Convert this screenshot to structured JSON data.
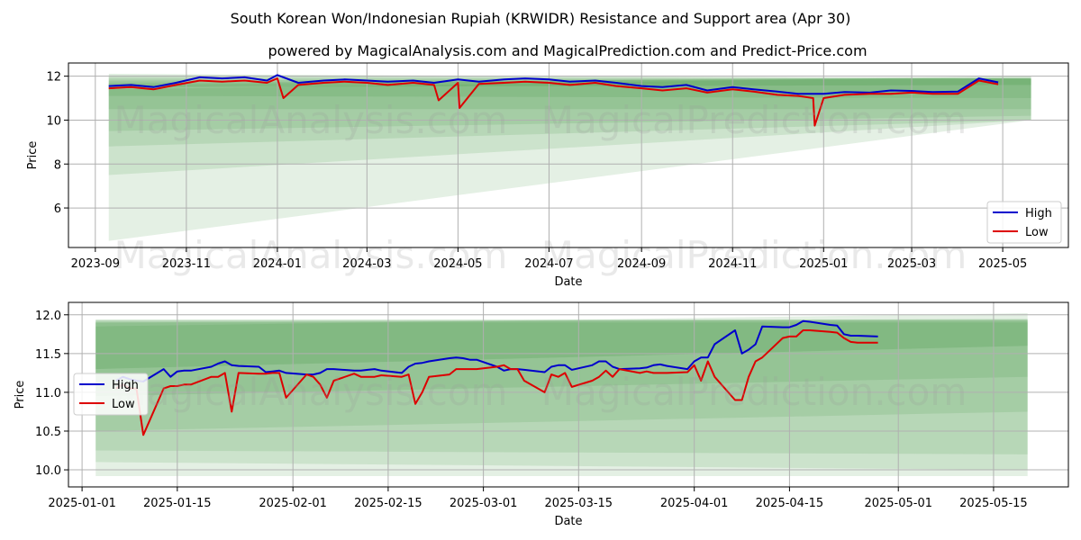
{
  "title": "South Korean Won/Indonesian Rupiah (KRWIDR) Resistance and Support area (Apr 30)",
  "subtitle": "powered by MagicalAnalysis.com and MagicalPrediction.com and Predict-Price.com",
  "watermarks": [
    "MagicalAnalysis.com",
    "MagicalPrediction.com"
  ],
  "colors": {
    "high": "#0000cc",
    "low": "#dd0000",
    "band": "#2e8b2e",
    "grid": "#b0b0b0"
  },
  "chart_data": [
    {
      "type": "line",
      "xlabel": "Date",
      "ylabel": "Price",
      "xlim": [
        "2023-08-14",
        "2025-06-14"
      ],
      "ylim": [
        4.2,
        12.6
      ],
      "x_ticks": [
        "2023-09",
        "2023-11",
        "2024-01",
        "2024-03",
        "2024-05",
        "2024-07",
        "2024-09",
        "2024-11",
        "2025-01",
        "2025-03",
        "2025-05"
      ],
      "y_ticks": [
        "6",
        "8",
        "10",
        "12"
      ],
      "legend": {
        "position": "bottom-right",
        "entries": [
          "High",
          "Low"
        ]
      },
      "bands": [
        {
          "start": "2023-09-10",
          "end": "2025-05-20",
          "start_range": [
            11.5,
            12.1
          ],
          "end_range": [
            11.6,
            11.9
          ]
        },
        {
          "start": "2023-09-10",
          "end": "2025-05-20",
          "start_range": [
            11.1,
            12.0
          ],
          "end_range": [
            11.0,
            11.9
          ]
        },
        {
          "start": "2023-09-10",
          "end": "2025-05-20",
          "start_range": [
            10.5,
            11.9
          ],
          "end_range": [
            10.5,
            11.9
          ]
        },
        {
          "start": "2023-09-10",
          "end": "2025-05-20",
          "start_range": [
            9.5,
            11.8
          ],
          "end_range": [
            10.2,
            11.9
          ]
        },
        {
          "start": "2023-09-10",
          "end": "2025-05-20",
          "start_range": [
            8.8,
            11.7
          ],
          "end_range": [
            10.0,
            11.9
          ]
        },
        {
          "start": "2023-09-10",
          "end": "2025-05-20",
          "start_range": [
            7.5,
            11.6
          ],
          "end_range": [
            10.0,
            12.0
          ]
        },
        {
          "start": "2023-09-10",
          "end": "2025-05-20",
          "start_range": [
            4.5,
            11.4
          ],
          "end_range": [
            10.0,
            12.0
          ]
        }
      ],
      "series": [
        {
          "name": "High",
          "x": [
            "2023-09-10",
            "2023-09-25",
            "2023-10-10",
            "2023-10-25",
            "2023-11-10",
            "2023-11-25",
            "2023-12-10",
            "2023-12-25",
            "2024-01-01",
            "2024-01-15",
            "2024-02-01",
            "2024-02-15",
            "2024-03-01",
            "2024-03-15",
            "2024-04-01",
            "2024-04-15",
            "2024-05-01",
            "2024-05-15",
            "2024-06-01",
            "2024-06-15",
            "2024-07-01",
            "2024-07-15",
            "2024-08-01",
            "2024-08-15",
            "2024-09-01",
            "2024-09-15",
            "2024-10-01",
            "2024-10-15",
            "2024-11-01",
            "2024-11-15",
            "2024-12-01",
            "2024-12-15",
            "2025-01-01",
            "2025-01-15",
            "2025-02-01",
            "2025-02-15",
            "2025-03-01",
            "2025-03-15",
            "2025-04-01",
            "2025-04-15",
            "2025-04-28"
          ],
          "values": [
            11.55,
            11.6,
            11.5,
            11.7,
            11.95,
            11.9,
            11.95,
            11.8,
            12.05,
            11.7,
            11.8,
            11.85,
            11.8,
            11.75,
            11.8,
            11.7,
            11.85,
            11.75,
            11.85,
            11.9,
            11.85,
            11.75,
            11.8,
            11.7,
            11.55,
            11.5,
            11.6,
            11.35,
            11.5,
            11.4,
            11.3,
            11.2,
            11.2,
            11.28,
            11.25,
            11.35,
            11.33,
            11.28,
            11.3,
            11.9,
            11.72
          ]
        },
        {
          "name": "Low",
          "x": [
            "2023-09-10",
            "2023-09-25",
            "2023-10-10",
            "2023-10-25",
            "2023-11-10",
            "2023-11-25",
            "2023-12-10",
            "2023-12-25",
            "2024-01-01",
            "2024-01-05",
            "2024-01-15",
            "2024-02-01",
            "2024-02-15",
            "2024-03-01",
            "2024-03-15",
            "2024-04-01",
            "2024-04-15",
            "2024-04-18",
            "2024-05-01",
            "2024-05-02",
            "2024-05-15",
            "2024-06-01",
            "2024-06-15",
            "2024-07-01",
            "2024-07-15",
            "2024-08-01",
            "2024-08-15",
            "2024-09-01",
            "2024-09-15",
            "2024-10-01",
            "2024-10-15",
            "2024-11-01",
            "2024-11-15",
            "2024-12-01",
            "2024-12-15",
            "2024-12-25",
            "2024-12-26",
            "2025-01-01",
            "2025-01-15",
            "2025-02-01",
            "2025-02-15",
            "2025-03-01",
            "2025-03-15",
            "2025-04-01",
            "2025-04-15",
            "2025-04-28"
          ],
          "values": [
            11.45,
            11.5,
            11.4,
            11.6,
            11.8,
            11.75,
            11.8,
            11.7,
            11.9,
            11.0,
            11.6,
            11.7,
            11.75,
            11.7,
            11.6,
            11.7,
            11.6,
            10.9,
            11.7,
            10.55,
            11.65,
            11.7,
            11.75,
            11.7,
            11.6,
            11.7,
            11.55,
            11.45,
            11.35,
            11.45,
            11.25,
            11.4,
            11.3,
            11.15,
            11.1,
            11.0,
            9.75,
            11.0,
            11.15,
            11.2,
            11.2,
            11.25,
            11.2,
            11.2,
            11.8,
            11.63
          ]
        }
      ]
    },
    {
      "type": "line",
      "xlabel": "Date",
      "ylabel": "Price",
      "xlim": [
        "2024-12-30",
        "2025-05-26"
      ],
      "ylim": [
        9.78,
        12.16
      ],
      "x_ticks": [
        "2025-01-01",
        "2025-01-15",
        "2025-02-01",
        "2025-02-15",
        "2025-03-01",
        "2025-03-15",
        "2025-04-01",
        "2025-04-15",
        "2025-05-01",
        "2025-05-15"
      ],
      "y_ticks": [
        "10.0",
        "10.5",
        "11.0",
        "11.5",
        "12.0"
      ],
      "legend": {
        "position": "center-left",
        "entries": [
          "High",
          "Low"
        ]
      },
      "bands": [
        {
          "start": "2025-01-03",
          "end": "2025-05-20",
          "start_range": [
            11.3,
            11.94
          ],
          "end_range": [
            11.6,
            11.94
          ]
        },
        {
          "start": "2025-01-03",
          "end": "2025-05-20",
          "start_range": [
            10.95,
            11.93
          ],
          "end_range": [
            11.2,
            11.93
          ]
        },
        {
          "start": "2025-01-03",
          "end": "2025-05-20",
          "start_range": [
            10.5,
            11.92
          ],
          "end_range": [
            10.75,
            11.92
          ]
        },
        {
          "start": "2025-01-03",
          "end": "2025-05-20",
          "start_range": [
            10.25,
            11.9
          ],
          "end_range": [
            10.2,
            11.9
          ]
        },
        {
          "start": "2025-01-03",
          "end": "2025-05-20",
          "start_range": [
            10.1,
            11.9
          ],
          "end_range": [
            10.0,
            11.95
          ]
        },
        {
          "start": "2025-01-03",
          "end": "2025-05-20",
          "start_range": [
            9.92,
            11.85
          ],
          "end_range": [
            9.92,
            12.02
          ]
        }
      ],
      "series": [
        {
          "name": "High",
          "x": [
            "2025-01-06",
            "2025-01-07",
            "2025-01-08",
            "2025-01-09",
            "2025-01-10",
            "2025-01-13",
            "2025-01-14",
            "2025-01-15",
            "2025-01-16",
            "2025-01-17",
            "2025-01-20",
            "2025-01-21",
            "2025-01-22",
            "2025-01-23",
            "2025-01-24",
            "2025-01-27",
            "2025-01-28",
            "2025-01-29",
            "2025-01-30",
            "2025-01-31",
            "2025-02-03",
            "2025-02-04",
            "2025-02-05",
            "2025-02-06",
            "2025-02-07",
            "2025-02-10",
            "2025-02-11",
            "2025-02-12",
            "2025-02-13",
            "2025-02-14",
            "2025-02-17",
            "2025-02-18",
            "2025-02-19",
            "2025-02-20",
            "2025-02-21",
            "2025-02-24",
            "2025-02-25",
            "2025-02-26",
            "2025-02-27",
            "2025-02-28",
            "2025-03-03",
            "2025-03-04",
            "2025-03-05",
            "2025-03-06",
            "2025-03-07",
            "2025-03-10",
            "2025-03-11",
            "2025-03-12",
            "2025-03-13",
            "2025-03-14",
            "2025-03-17",
            "2025-03-18",
            "2025-03-19",
            "2025-03-20",
            "2025-03-21",
            "2025-03-24",
            "2025-03-25",
            "2025-03-26",
            "2025-03-27",
            "2025-03-28",
            "2025-03-31",
            "2025-04-01",
            "2025-04-02",
            "2025-04-03",
            "2025-04-04",
            "2025-04-07",
            "2025-04-08",
            "2025-04-09",
            "2025-04-10",
            "2025-04-11",
            "2025-04-14",
            "2025-04-15",
            "2025-04-16",
            "2025-04-17",
            "2025-04-18",
            "2025-04-21",
            "2025-04-22",
            "2025-04-23",
            "2025-04-24",
            "2025-04-25",
            "2025-04-28"
          ],
          "values": [
            11.15,
            11.2,
            11.17,
            11.15,
            11.14,
            11.3,
            11.2,
            11.27,
            11.28,
            11.28,
            11.33,
            11.37,
            11.4,
            11.35,
            11.34,
            11.33,
            11.26,
            11.27,
            11.28,
            11.25,
            11.23,
            11.23,
            11.25,
            11.3,
            11.3,
            11.28,
            11.28,
            11.29,
            11.3,
            11.28,
            11.25,
            11.33,
            11.37,
            11.38,
            11.4,
            11.44,
            11.45,
            11.44,
            11.42,
            11.42,
            11.33,
            11.28,
            11.3,
            11.3,
            11.29,
            11.26,
            11.33,
            11.35,
            11.35,
            11.29,
            11.35,
            11.4,
            11.4,
            11.33,
            11.3,
            11.31,
            11.32,
            11.35,
            11.36,
            11.34,
            11.3,
            11.4,
            11.45,
            11.45,
            11.62,
            11.8,
            11.5,
            11.55,
            11.62,
            11.85,
            11.84,
            11.84,
            11.87,
            11.92,
            11.91,
            11.87,
            11.86,
            11.75,
            11.73,
            11.73,
            11.72
          ]
        },
        {
          "name": "Low",
          "x": [
            "2025-01-06",
            "2025-01-07",
            "2025-01-08",
            "2025-01-09",
            "2025-01-10",
            "2025-01-13",
            "2025-01-14",
            "2025-01-15",
            "2025-01-16",
            "2025-01-17",
            "2025-01-20",
            "2025-01-21",
            "2025-01-22",
            "2025-01-23",
            "2025-01-24",
            "2025-01-27",
            "2025-01-28",
            "2025-01-29",
            "2025-01-30",
            "2025-01-31",
            "2025-02-03",
            "2025-02-04",
            "2025-02-05",
            "2025-02-06",
            "2025-02-07",
            "2025-02-10",
            "2025-02-11",
            "2025-02-12",
            "2025-02-13",
            "2025-02-14",
            "2025-02-17",
            "2025-02-18",
            "2025-02-19",
            "2025-02-20",
            "2025-02-21",
            "2025-02-24",
            "2025-02-25",
            "2025-02-26",
            "2025-02-27",
            "2025-02-28",
            "2025-03-03",
            "2025-03-04",
            "2025-03-05",
            "2025-03-06",
            "2025-03-07",
            "2025-03-10",
            "2025-03-11",
            "2025-03-12",
            "2025-03-13",
            "2025-03-14",
            "2025-03-17",
            "2025-03-18",
            "2025-03-19",
            "2025-03-20",
            "2025-03-21",
            "2025-03-24",
            "2025-03-25",
            "2025-03-26",
            "2025-03-27",
            "2025-03-28",
            "2025-03-31",
            "2025-04-01",
            "2025-04-02",
            "2025-04-03",
            "2025-04-04",
            "2025-04-07",
            "2025-04-08",
            "2025-04-09",
            "2025-04-10",
            "2025-04-11",
            "2025-04-14",
            "2025-04-15",
            "2025-04-16",
            "2025-04-17",
            "2025-04-18",
            "2025-04-21",
            "2025-04-22",
            "2025-04-23",
            "2025-04-24",
            "2025-04-25",
            "2025-04-28"
          ],
          "values": [
            11.05,
            11.1,
            11.05,
            11.05,
            10.45,
            11.05,
            11.08,
            11.08,
            11.1,
            11.1,
            11.2,
            11.2,
            11.25,
            10.75,
            11.25,
            11.24,
            11.24,
            11.25,
            11.25,
            10.93,
            11.23,
            11.2,
            11.1,
            10.93,
            11.15,
            11.24,
            11.2,
            11.2,
            11.2,
            11.22,
            11.2,
            11.23,
            10.85,
            11.0,
            11.2,
            11.23,
            11.3,
            11.3,
            11.3,
            11.3,
            11.33,
            11.35,
            11.3,
            11.3,
            11.15,
            11.0,
            11.23,
            11.2,
            11.25,
            11.07,
            11.15,
            11.2,
            11.28,
            11.2,
            11.3,
            11.25,
            11.27,
            11.25,
            11.25,
            11.25,
            11.26,
            11.35,
            11.15,
            11.4,
            11.2,
            10.9,
            10.9,
            11.2,
            11.4,
            11.45,
            11.7,
            11.72,
            11.72,
            11.8,
            11.8,
            11.78,
            11.77,
            11.7,
            11.65,
            11.64,
            11.64
          ]
        }
      ]
    }
  ]
}
